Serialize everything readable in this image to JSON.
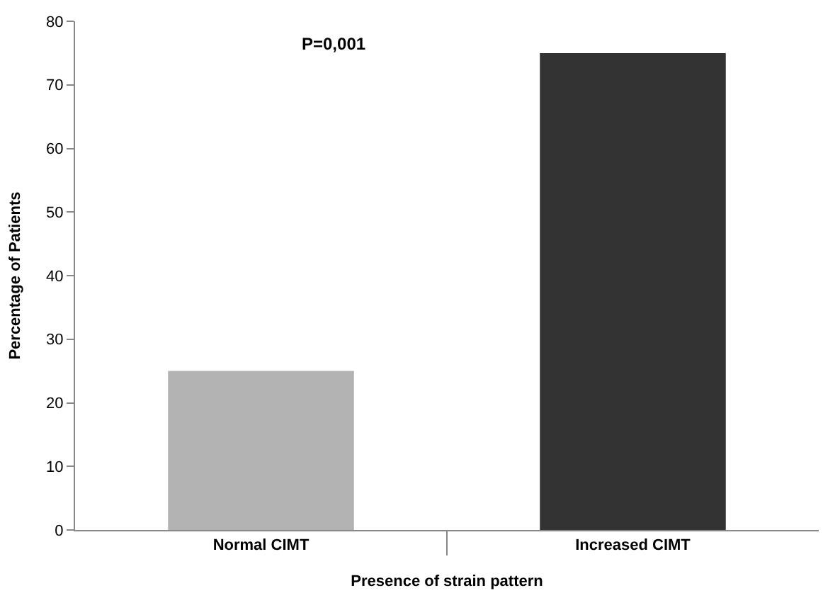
{
  "chart_data": {
    "type": "bar",
    "xlabel": "Presence of strain pattern",
    "ylabel": "Percentage of Patients",
    "categories": [
      "Normal CIMT",
      "Increased CIMT"
    ],
    "values": [
      25,
      75
    ],
    "colors": [
      "#b3b3b3",
      "#333333"
    ],
    "ylim": [
      0,
      80
    ],
    "yticks": [
      0,
      10,
      20,
      30,
      40,
      50,
      60,
      70,
      80
    ],
    "annotations": [
      "P=0,001"
    ]
  }
}
